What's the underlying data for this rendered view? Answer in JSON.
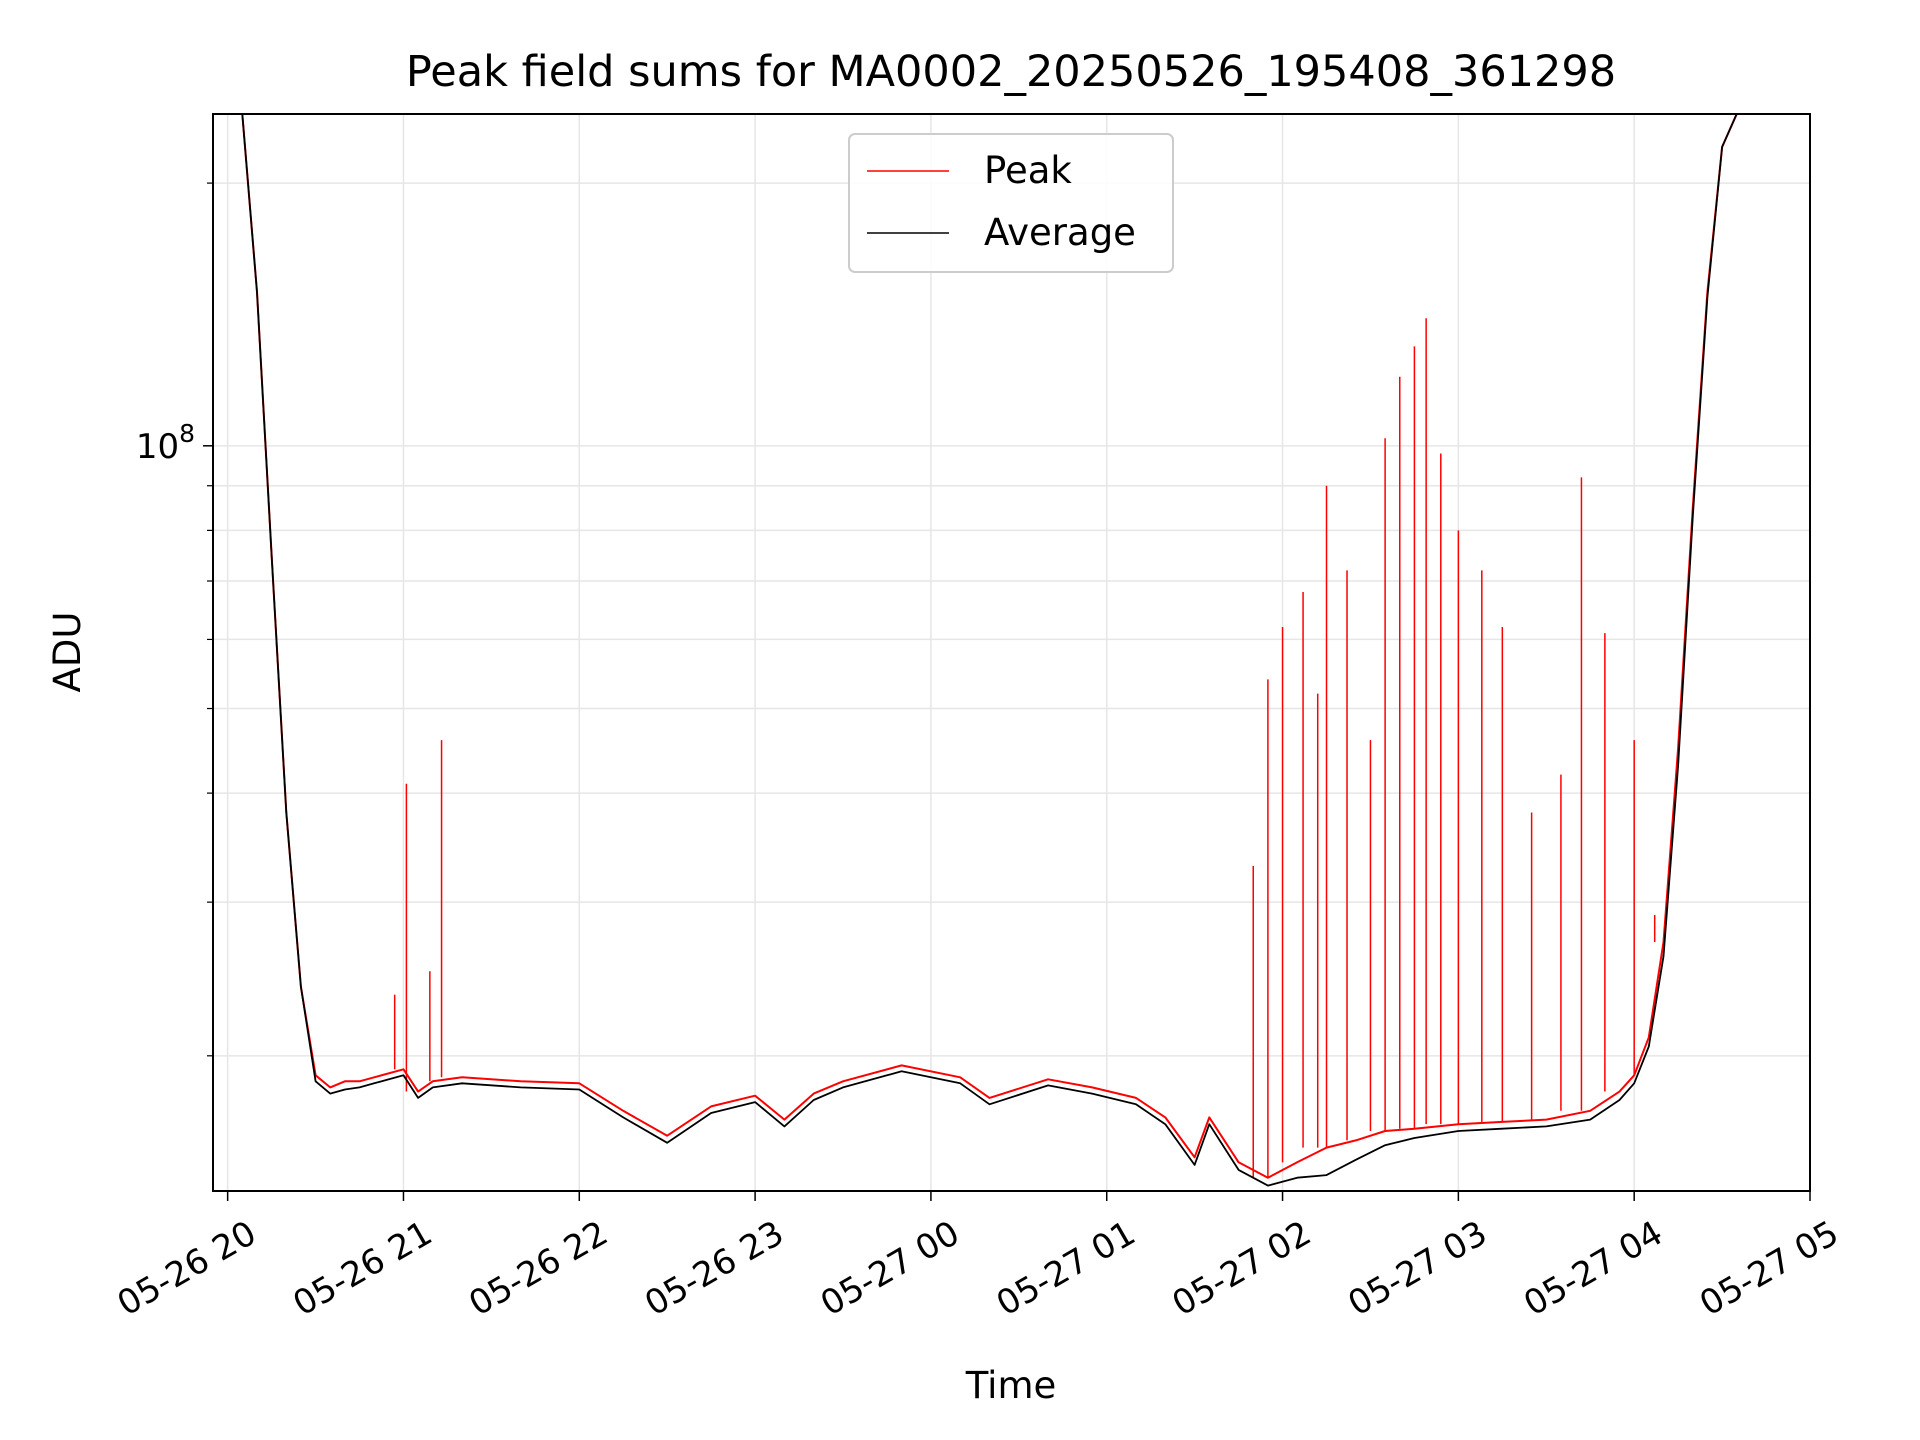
{
  "chart_data": {
    "type": "line",
    "title": "Peak field sums for MA0002_20250526_195408_361298",
    "xlabel": "Time",
    "ylabel": "ADU",
    "y_scale": "log",
    "y_major_tick_labels": [
      {
        "value": 100000000,
        "base": "10",
        "exp": "8"
      }
    ],
    "y_minor_ticks": [
      20000000,
      30000000,
      40000000,
      50000000,
      60000000,
      70000000,
      80000000,
      90000000,
      200000000
    ],
    "ylim": [
      14000000,
      240000000
    ],
    "xlim": [
      "2025-05-26 19:55",
      "2025-05-27 05:00"
    ],
    "x_tick_labels": [
      "05-26 20",
      "05-26 21",
      "05-26 22",
      "05-26 23",
      "05-27 00",
      "05-27 01",
      "05-27 02",
      "05-27 03",
      "05-27 04",
      "05-27 05"
    ],
    "x_ticks": [
      "2025-05-26 20:00",
      "2025-05-26 21:00",
      "2025-05-26 22:00",
      "2025-05-26 23:00",
      "2025-05-27 00:00",
      "2025-05-27 01:00",
      "2025-05-27 02:00",
      "2025-05-27 03:00",
      "2025-05-27 04:00",
      "2025-05-27 05:00"
    ],
    "grid": true,
    "legend_placement": "upper center",
    "series": [
      {
        "name": "Peak",
        "color": "#ff0000",
        "x": [
          "2025-05-26 19:55",
          "2025-05-26 20:05",
          "2025-05-26 20:10",
          "2025-05-26 20:15",
          "2025-05-26 20:20",
          "2025-05-26 20:25",
          "2025-05-26 20:30",
          "2025-05-26 20:35",
          "2025-05-26 20:40",
          "2025-05-26 20:45",
          "2025-05-26 20:50",
          "2025-05-26 21:00",
          "2025-05-26 21:05",
          "2025-05-26 21:10",
          "2025-05-26 21:20",
          "2025-05-26 21:40",
          "2025-05-26 22:00",
          "2025-05-26 22:15",
          "2025-05-26 22:30",
          "2025-05-26 22:45",
          "2025-05-26 23:00",
          "2025-05-26 23:10",
          "2025-05-26 23:20",
          "2025-05-26 23:30",
          "2025-05-26 23:50",
          "2025-05-27 00:10",
          "2025-05-27 00:20",
          "2025-05-27 00:40",
          "2025-05-27 00:55",
          "2025-05-27 01:10",
          "2025-05-27 01:20",
          "2025-05-27 01:30",
          "2025-05-27 01:35",
          "2025-05-27 01:45",
          "2025-05-27 01:55",
          "2025-05-27 02:05",
          "2025-05-27 02:15",
          "2025-05-27 02:25",
          "2025-05-27 02:35",
          "2025-05-27 02:45",
          "2025-05-27 03:00",
          "2025-05-27 03:15",
          "2025-05-27 03:30",
          "2025-05-27 03:45",
          "2025-05-27 03:55",
          "2025-05-27 04:00",
          "2025-05-27 04:05",
          "2025-05-27 04:10",
          "2025-05-27 04:15",
          "2025-05-27 04:20",
          "2025-05-27 04:25",
          "2025-05-27 04:30",
          "2025-05-27 04:35",
          "2025-05-27 04:40",
          "2025-05-27 04:45",
          "2025-05-27 04:50",
          "2025-05-27 05:00"
        ],
        "y": [
          240000000,
          240000000,
          150000000,
          75000000,
          38000000,
          24000000,
          19000000,
          18400000,
          18700000,
          18700000,
          18900000,
          19300000,
          18200000,
          18700000,
          18900000,
          18700000,
          18600000,
          17300000,
          16200000,
          17500000,
          18000000,
          16900000,
          18100000,
          18700000,
          19500000,
          18900000,
          17900000,
          18800000,
          18400000,
          17900000,
          17000000,
          15300000,
          17000000,
          15100000,
          14500000,
          15100000,
          15700000,
          16000000,
          16400000,
          16500000,
          16700000,
          16800000,
          16900000,
          17300000,
          18200000,
          19000000,
          21000000,
          27000000,
          45000000,
          85000000,
          150000000,
          220000000,
          240000000,
          240000000,
          240000000,
          240000000,
          240000000
        ]
      },
      {
        "name": "Average",
        "color": "#000000",
        "x": [
          "2025-05-26 19:55",
          "2025-05-26 20:05",
          "2025-05-26 20:10",
          "2025-05-26 20:15",
          "2025-05-26 20:20",
          "2025-05-26 20:25",
          "2025-05-26 20:30",
          "2025-05-26 20:35",
          "2025-05-26 20:40",
          "2025-05-26 20:45",
          "2025-05-26 20:50",
          "2025-05-26 21:00",
          "2025-05-26 21:05",
          "2025-05-26 21:10",
          "2025-05-26 21:20",
          "2025-05-26 21:40",
          "2025-05-26 22:00",
          "2025-05-26 22:15",
          "2025-05-26 22:30",
          "2025-05-26 22:45",
          "2025-05-26 23:00",
          "2025-05-26 23:10",
          "2025-05-26 23:20",
          "2025-05-26 23:30",
          "2025-05-26 23:50",
          "2025-05-27 00:10",
          "2025-05-27 00:20",
          "2025-05-27 00:40",
          "2025-05-27 00:55",
          "2025-05-27 01:10",
          "2025-05-27 01:20",
          "2025-05-27 01:30",
          "2025-05-27 01:35",
          "2025-05-27 01:45",
          "2025-05-27 01:55",
          "2025-05-27 02:05",
          "2025-05-27 02:15",
          "2025-05-27 02:25",
          "2025-05-27 02:35",
          "2025-05-27 02:45",
          "2025-05-27 03:00",
          "2025-05-27 03:15",
          "2025-05-27 03:30",
          "2025-05-27 03:45",
          "2025-05-27 03:55",
          "2025-05-27 04:00",
          "2025-05-27 04:05",
          "2025-05-27 04:10",
          "2025-05-27 04:15",
          "2025-05-27 04:20",
          "2025-05-27 04:25",
          "2025-05-27 04:30",
          "2025-05-27 04:35",
          "2025-05-27 04:40",
          "2025-05-27 04:45",
          "2025-05-27 04:50",
          "2025-05-27 05:00"
        ],
        "y": [
          240000000,
          240000000,
          150000000,
          75000000,
          38000000,
          24000000,
          18700000,
          18100000,
          18300000,
          18400000,
          18600000,
          19000000,
          17900000,
          18400000,
          18600000,
          18400000,
          18300000,
          17000000,
          15900000,
          17200000,
          17700000,
          16600000,
          17800000,
          18400000,
          19200000,
          18600000,
          17600000,
          18500000,
          18100000,
          17600000,
          16700000,
          15000000,
          16700000,
          14800000,
          14200000,
          14500000,
          14600000,
          15200000,
          15800000,
          16100000,
          16400000,
          16500000,
          16600000,
          16900000,
          17800000,
          18600000,
          20500000,
          26000000,
          43000000,
          83000000,
          148000000,
          220000000,
          240000000,
          240000000,
          240000000,
          240000000,
          240000000
        ]
      }
    ],
    "peak_spikes": [
      {
        "x": "2025-05-26 20:57",
        "y": 23500000
      },
      {
        "x": "2025-05-26 21:01",
        "y": 41000000
      },
      {
        "x": "2025-05-26 21:09",
        "y": 25000000
      },
      {
        "x": "2025-05-26 21:13",
        "y": 46000000
      },
      {
        "x": "2025-05-27 01:50",
        "y": 33000000
      },
      {
        "x": "2025-05-27 01:55",
        "y": 54000000
      },
      {
        "x": "2025-05-27 02:00",
        "y": 62000000
      },
      {
        "x": "2025-05-27 02:07",
        "y": 68000000
      },
      {
        "x": "2025-05-27 02:12",
        "y": 52000000
      },
      {
        "x": "2025-05-27 02:15",
        "y": 90000000
      },
      {
        "x": "2025-05-27 02:22",
        "y": 72000000
      },
      {
        "x": "2025-05-27 02:30",
        "y": 46000000
      },
      {
        "x": "2025-05-27 02:35",
        "y": 102000000
      },
      {
        "x": "2025-05-27 02:40",
        "y": 120000000
      },
      {
        "x": "2025-05-27 02:45",
        "y": 130000000
      },
      {
        "x": "2025-05-27 02:49",
        "y": 140000000
      },
      {
        "x": "2025-05-27 02:54",
        "y": 98000000
      },
      {
        "x": "2025-05-27 03:00",
        "y": 80000000
      },
      {
        "x": "2025-05-27 03:08",
        "y": 72000000
      },
      {
        "x": "2025-05-27 03:15",
        "y": 62000000
      },
      {
        "x": "2025-05-27 03:25",
        "y": 38000000
      },
      {
        "x": "2025-05-27 03:35",
        "y": 42000000
      },
      {
        "x": "2025-05-27 03:42",
        "y": 92000000
      },
      {
        "x": "2025-05-27 03:50",
        "y": 61000000
      },
      {
        "x": "2025-05-27 04:00",
        "y": 46000000
      },
      {
        "x": "2025-05-27 04:07",
        "y": 29000000
      }
    ]
  }
}
